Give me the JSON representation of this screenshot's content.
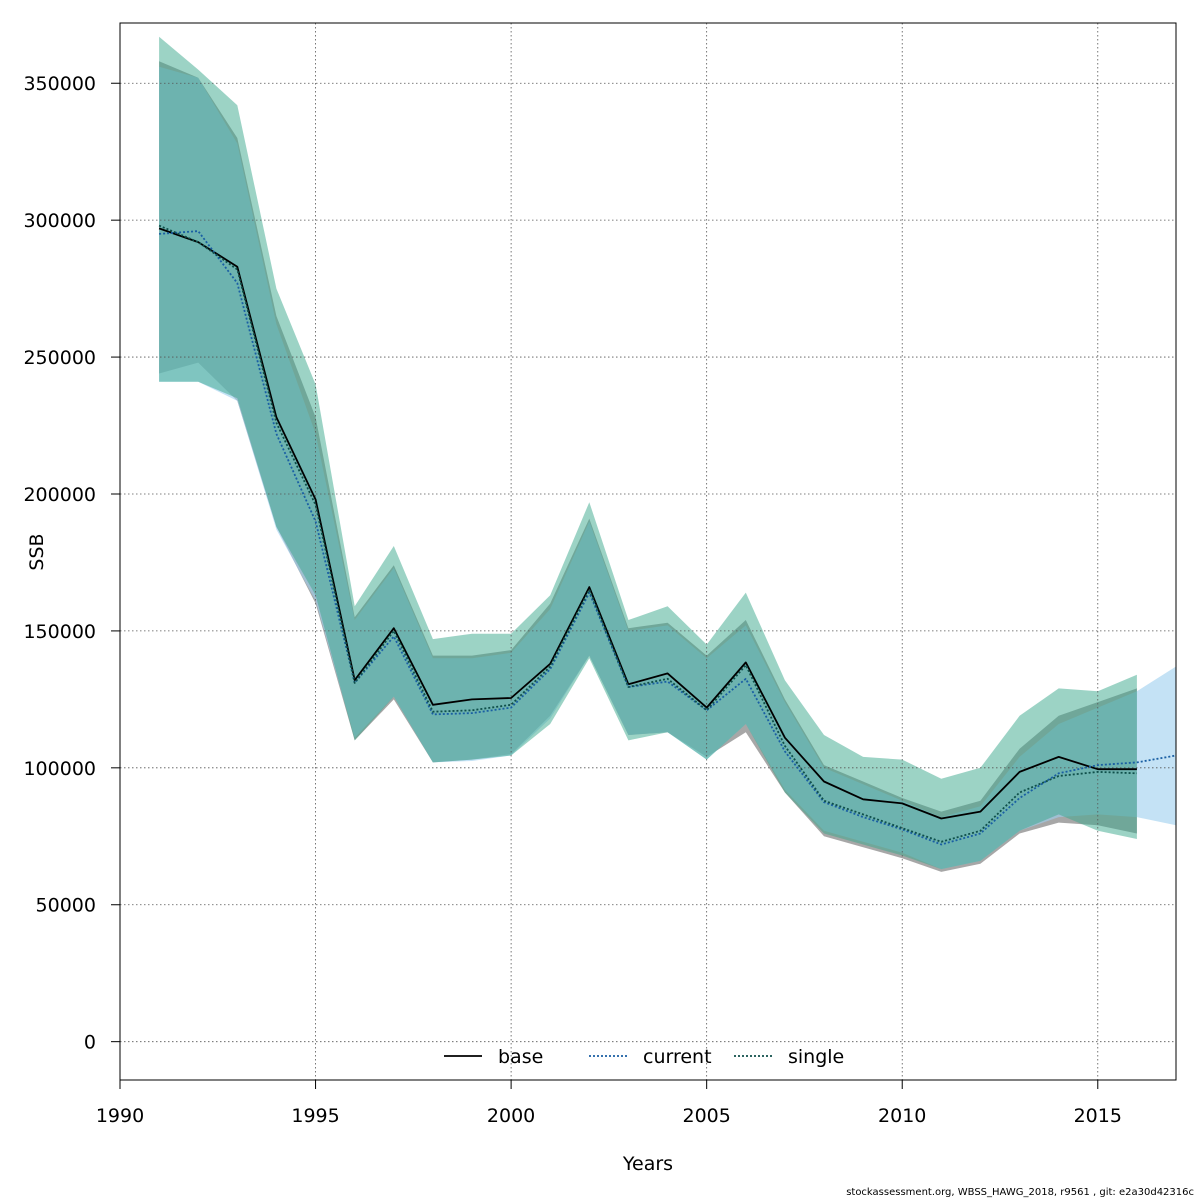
{
  "chart_data": {
    "type": "line",
    "xlabel": "Years",
    "ylabel": "SSB",
    "xlim": [
      1990,
      2017
    ],
    "ylim": [
      -14000,
      372000
    ],
    "xticks": [
      1990,
      1995,
      2000,
      2005,
      2010,
      2015
    ],
    "yticks": [
      0,
      50000,
      100000,
      150000,
      200000,
      250000,
      300000,
      350000
    ],
    "grid": true,
    "legend_position": "bottom",
    "series": [
      {
        "name": "base",
        "line_style": "solid",
        "line_color": "#000000",
        "band_color": "#8a8a8a",
        "x": [
          1991,
          1992,
          1993,
          1994,
          1995,
          1996,
          1997,
          1998,
          1999,
          2000,
          2001,
          2002,
          2003,
          2004,
          2005,
          2006,
          2007,
          2008,
          2009,
          2010,
          2011,
          2012,
          2013,
          2014,
          2015,
          2016
        ],
        "values": [
          297000,
          292000,
          283000,
          228000,
          198000,
          132000,
          151000,
          123000,
          125000,
          125500,
          138000,
          166000,
          130500,
          134500,
          122000,
          138500,
          111000,
          95000,
          88500,
          87000,
          81500,
          84000,
          98500,
          104000,
          99500,
          99500
        ],
        "lower": [
          244000,
          248000,
          234000,
          188000,
          160000,
          110000,
          125000,
          102000,
          103000,
          105000,
          119000,
          141000,
          112000,
          113000,
          104000,
          113000,
          91000,
          75000,
          71000,
          67000,
          62000,
          65000,
          76000,
          80000,
          79000,
          76000
        ],
        "upper": [
          358000,
          352000,
          330000,
          265000,
          228000,
          155000,
          174000,
          141000,
          141000,
          143000,
          160000,
          191000,
          151000,
          153000,
          141000,
          154000,
          125000,
          101000,
          95000,
          89000,
          84000,
          88000,
          107000,
          119000,
          124000,
          129000
        ]
      },
      {
        "name": "current",
        "line_style": "dotted",
        "line_color": "#1a5fa3",
        "band_color": "#9dcfee",
        "x": [
          1991,
          1992,
          1993,
          1994,
          1995,
          1996,
          1997,
          1998,
          1999,
          2000,
          2001,
          2002,
          2003,
          2004,
          2005,
          2006,
          2007,
          2008,
          2009,
          2010,
          2011,
          2012,
          2013,
          2014,
          2015,
          2016,
          2017
        ],
        "values": [
          295000,
          296000,
          277000,
          222000,
          190000,
          131000,
          148000,
          119500,
          120000,
          122000,
          136000,
          164000,
          129500,
          131500,
          121000,
          132500,
          106000,
          87500,
          82000,
          77500,
          72000,
          76000,
          89000,
          98000,
          101000,
          102000,
          104500
        ],
        "lower": [
          241000,
          241000,
          234000,
          187000,
          161000,
          111000,
          126000,
          102000,
          102500,
          104500,
          118000,
          141000,
          112000,
          113000,
          103000,
          116000,
          92000,
          77000,
          73000,
          69000,
          63000,
          66000,
          77000,
          82000,
          83000,
          82000,
          79000
        ],
        "upper": [
          356000,
          352000,
          328000,
          262000,
          222000,
          154000,
          173000,
          140000,
          140000,
          142000,
          158000,
          190000,
          150000,
          152000,
          140000,
          152000,
          124000,
          100000,
          94000,
          88000,
          82000,
          86000,
          104000,
          116000,
          122000,
          128000,
          137000
        ]
      },
      {
        "name": "single",
        "line_style": "dotted",
        "line_color": "#0f4f4a",
        "band_color": "#3aa88c",
        "x": [
          1991,
          1992,
          1993,
          1994,
          1995,
          1996,
          1997,
          1998,
          1999,
          2000,
          2001,
          2002,
          2003,
          2004,
          2005,
          2006,
          2007,
          2008,
          2009,
          2010,
          2011,
          2012,
          2013,
          2014,
          2015,
          2016
        ],
        "values": [
          298000,
          292000,
          282000,
          226000,
          196000,
          131000,
          150000,
          120500,
          121000,
          123000,
          137000,
          165000,
          129500,
          132500,
          121000,
          137500,
          108000,
          88000,
          83000,
          78000,
          73000,
          77000,
          91000,
          97000,
          98500,
          98000
        ],
        "lower": [
          241000,
          241000,
          235000,
          188000,
          163000,
          110000,
          126000,
          102000,
          103000,
          104500,
          116000,
          140000,
          110000,
          113000,
          103000,
          116000,
          91000,
          76000,
          72000,
          68000,
          63000,
          66000,
          77000,
          83000,
          77000,
          74000
        ],
        "upper": [
          367000,
          355000,
          342000,
          275000,
          240000,
          159000,
          181000,
          147000,
          149000,
          149000,
          163000,
          197000,
          154000,
          159000,
          145000,
          164000,
          132000,
          112000,
          104000,
          103000,
          96000,
          100000,
          119000,
          129000,
          128000,
          134000
        ]
      }
    ]
  },
  "footer": "stockassessment.org, WBSS_HAWG_2018, r9561 , git: e2a30d42316c"
}
